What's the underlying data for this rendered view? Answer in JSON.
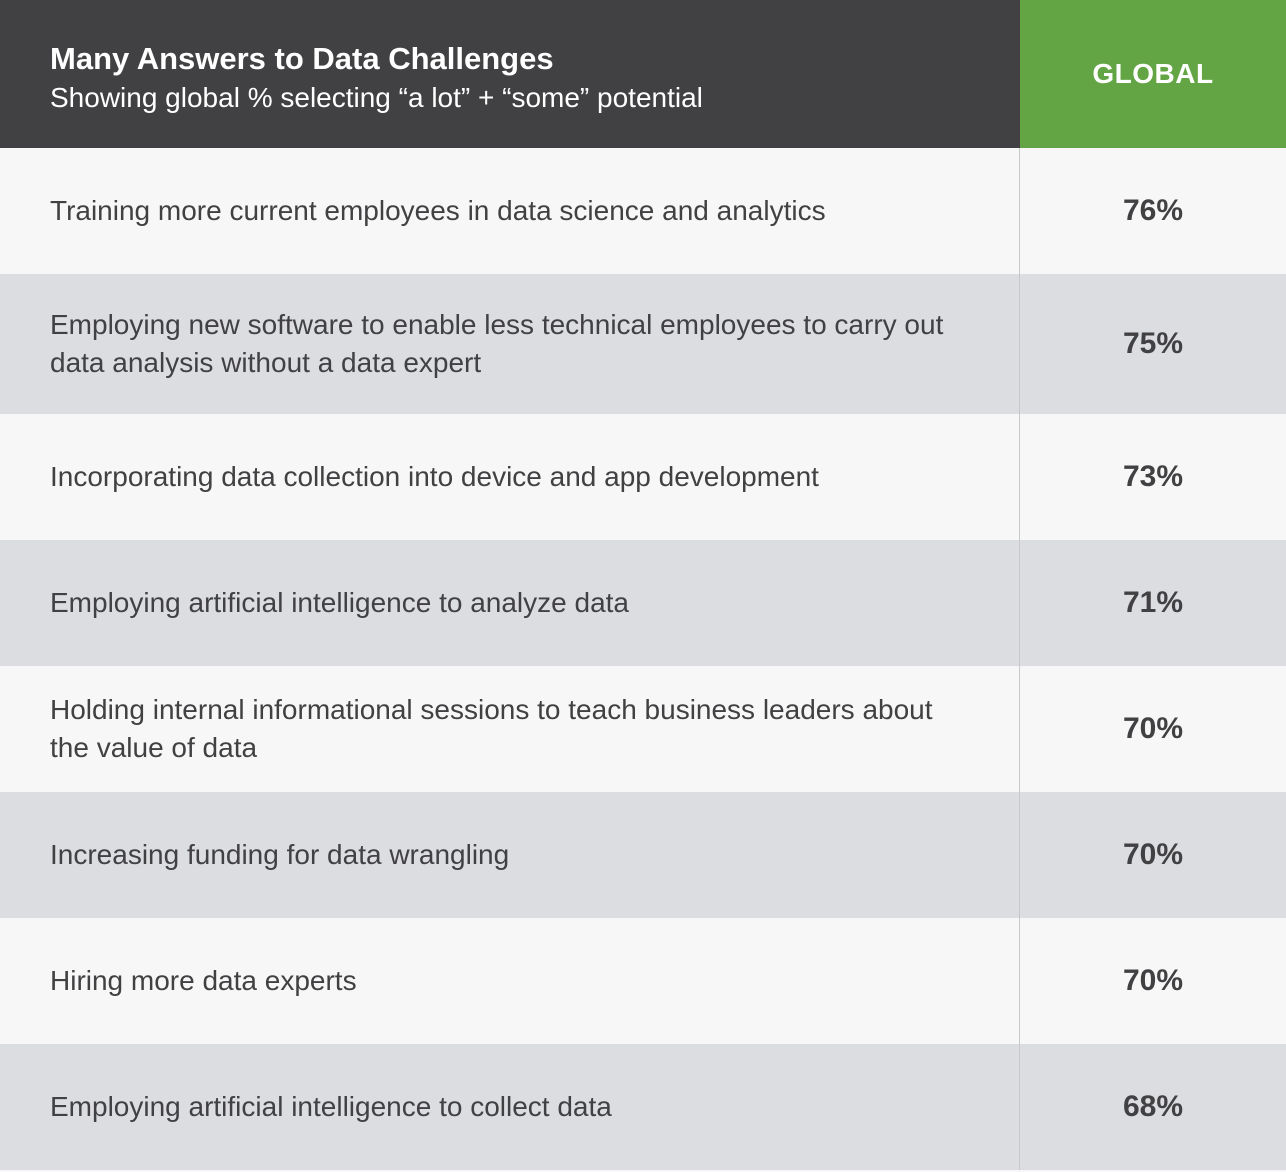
{
  "chart_data": {
    "type": "table",
    "title": "Many Answers to Data Challenges",
    "subtitle": "Showing global % selecting “a lot” + “some” potential",
    "column_header": "GLOBAL",
    "colors": {
      "header_dark": "#414042",
      "header_accent": "#63a544",
      "row_light": "#f7f7f7",
      "row_dark": "#dcdde0"
    },
    "rows": [
      {
        "label": "Training more current employees in data science and analytics",
        "value": "76%",
        "numeric_value": 76
      },
      {
        "label": "Employing new software to enable less technical employees to carry out data analysis without a data expert",
        "value": "75%",
        "numeric_value": 75
      },
      {
        "label": "Incorporating data collection into device and app development",
        "value": "73%",
        "numeric_value": 73
      },
      {
        "label": "Employing artificial intelligence to analyze data",
        "value": "71%",
        "numeric_value": 71
      },
      {
        "label": "Holding internal informational sessions to teach business leaders about the value of data",
        "value": "70%",
        "numeric_value": 70
      },
      {
        "label": "Increasing funding for data wrangling",
        "value": "70%",
        "numeric_value": 70
      },
      {
        "label": "Hiring more data experts",
        "value": "70%",
        "numeric_value": 70
      },
      {
        "label": "Employing artificial intelligence to collect data",
        "value": "68%",
        "numeric_value": 68
      }
    ]
  }
}
